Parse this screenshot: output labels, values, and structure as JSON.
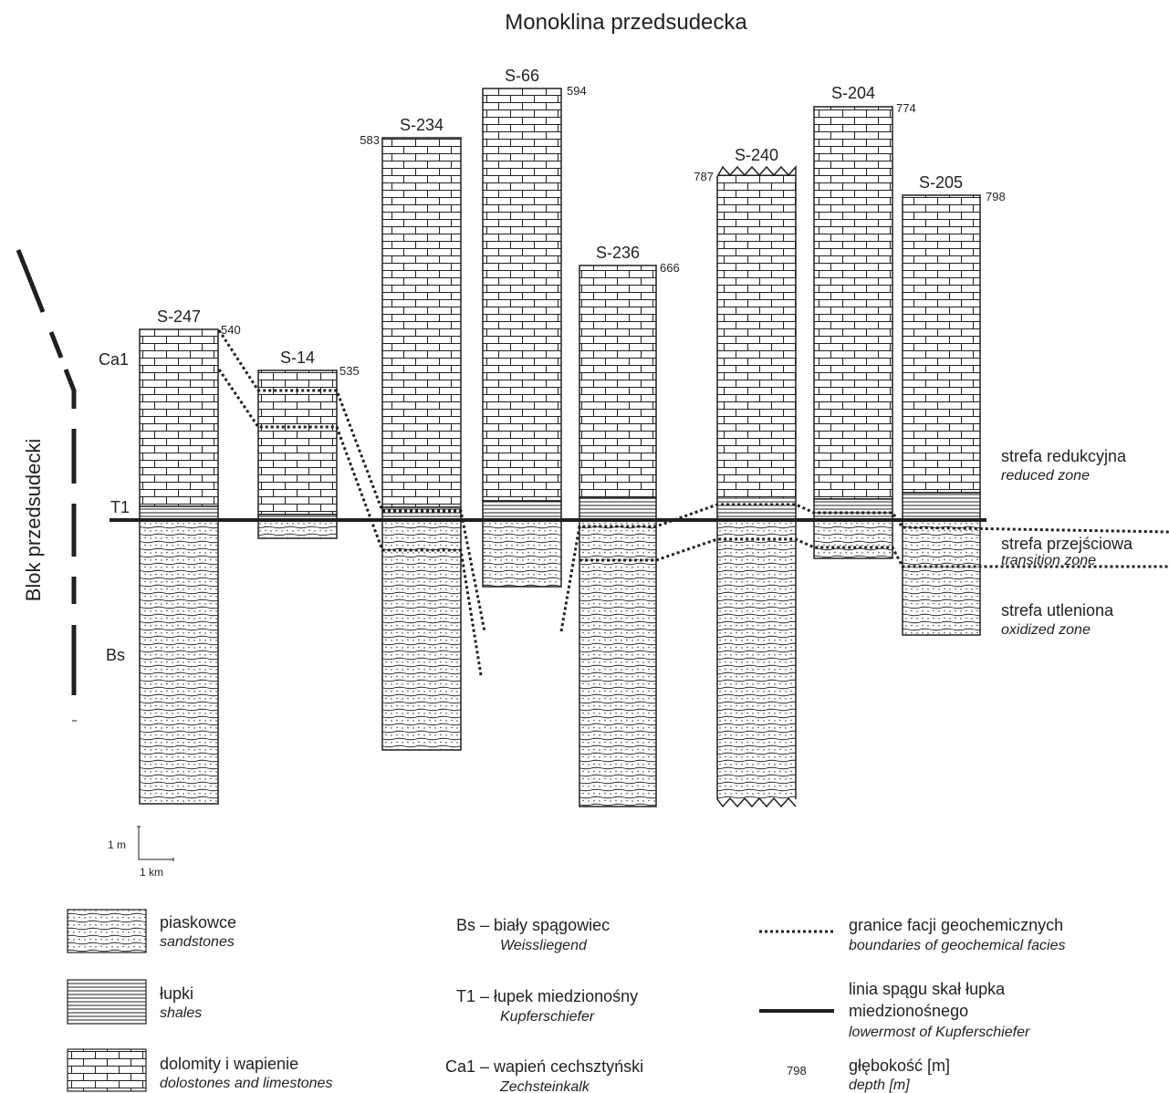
{
  "title": "Monoklina przedsudecka",
  "block_label": "Blok przedsudecki",
  "unit_labels": {
    "ca1": "Ca1",
    "t1": "T1",
    "bs": "Bs"
  },
  "wells": [
    {
      "name": "S-247",
      "depth": "540"
    },
    {
      "name": "S-14",
      "depth": "535"
    },
    {
      "name": "S-234",
      "depth": "583"
    },
    {
      "name": "S-66",
      "depth": "594"
    },
    {
      "name": "S-236",
      "depth": "666"
    },
    {
      "name": "S-240",
      "depth": "787"
    },
    {
      "name": "S-204",
      "depth": "774"
    },
    {
      "name": "S-205",
      "depth": "798"
    }
  ],
  "zones": {
    "reduced": {
      "pl": "strefa redukcyjna",
      "en": "reduced zone"
    },
    "transition": {
      "pl": "strefa przejściowa",
      "en": "transition zone"
    },
    "oxidized": {
      "pl": "strefa utleniona",
      "en": "oxidized zone"
    }
  },
  "scale": {
    "vertical": "1 m",
    "horizontal": "1 km"
  },
  "legend": {
    "sandstones": {
      "pl": "piaskowce",
      "en": "sandstones"
    },
    "shales": {
      "pl": "łupki",
      "en": "shales"
    },
    "dolostones": {
      "pl": "dolomity i wapienie",
      "en": "dolostones and limestones"
    },
    "bs": {
      "pl": "Bs – biały spągowiec",
      "en": "Weissliegend"
    },
    "t1": {
      "pl": "T1 – łupek miedzionośny",
      "en": "Kupferschiefer"
    },
    "ca1": {
      "pl": "Ca1 – wapień cechsztyński",
      "en": "Zechsteinkalk"
    },
    "boundaries": {
      "pl": "granice facji geochemicznych",
      "en": "boundaries of geochemical facies"
    },
    "base_line": {
      "pl1": "linia spągu skał łupka",
      "pl2": "miedzionośnego",
      "en": "lowermost of Kupferschiefer"
    },
    "depth": {
      "sample": "798",
      "pl": "głębokość [m]",
      "en": "depth [m]"
    }
  },
  "colors": {
    "ink": "#231f20",
    "paper": "#ffffff"
  }
}
